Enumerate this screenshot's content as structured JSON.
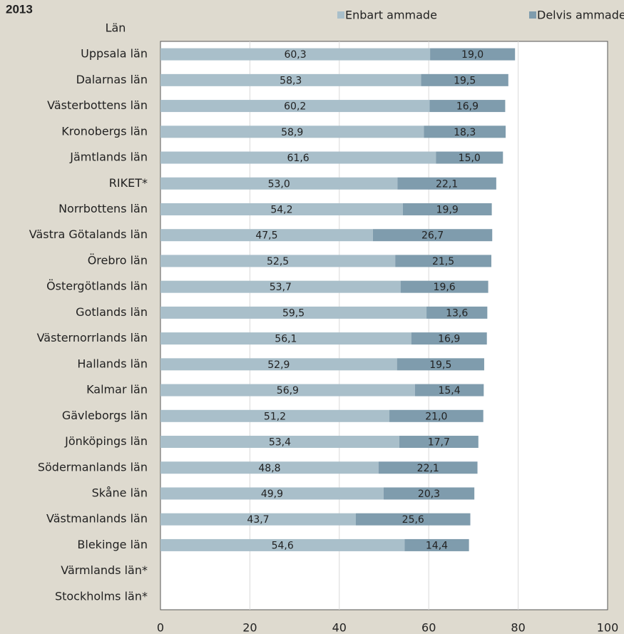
{
  "chart_data": {
    "type": "bar",
    "orientation": "horizontal",
    "stacked": true,
    "title": "2013",
    "y_label": "Län",
    "categories": [
      "Uppsala län",
      "Dalarnas län",
      "Västerbottens län",
      "Kronobergs län",
      "Jämtlands län",
      "RIKET*",
      "Norrbottens län",
      "Västra Götalands län",
      "Örebro län",
      "Östergötlands län",
      "Gotlands län",
      "Västernorrlands län",
      "Hallands län",
      "Kalmar län",
      "Gävleborgs län",
      "Jönköpings län",
      "Södermanlands län",
      "Skåne län",
      "Västmanlands län",
      "Blekinge län",
      "Värmlands län*",
      "Stockholms län*"
    ],
    "series": [
      {
        "name": "Enbart ammade",
        "color": "#a9bfca",
        "values": [
          60.3,
          58.3,
          60.2,
          58.9,
          61.6,
          53.0,
          54.2,
          47.5,
          52.5,
          53.7,
          59.5,
          56.1,
          52.9,
          56.9,
          51.2,
          53.4,
          48.8,
          49.9,
          43.7,
          54.6,
          null,
          null
        ],
        "value_labels": [
          "60,3",
          "58,3",
          "60,2",
          "58,9",
          "61,6",
          "53,0",
          "54,2",
          "47,5",
          "52,5",
          "53,7",
          "59,5",
          "56,1",
          "52,9",
          "56,9",
          "51,2",
          "53,4",
          "48,8",
          "49,9",
          "43,7",
          "54,6",
          null,
          null
        ]
      },
      {
        "name": "Delvis ammade",
        "color": "#7f9cad",
        "values": [
          19.0,
          19.5,
          16.9,
          18.3,
          15.0,
          22.1,
          19.9,
          26.7,
          21.5,
          19.6,
          13.6,
          16.9,
          19.5,
          15.4,
          21.0,
          17.7,
          22.1,
          20.3,
          25.6,
          14.4,
          null,
          null
        ],
        "value_labels": [
          "19,0",
          "19,5",
          "16,9",
          "18,3",
          "15,0",
          "22,1",
          "19,9",
          "26,7",
          "21,5",
          "19,6",
          "13,6",
          "16,9",
          "19,5",
          "15,4",
          "21,0",
          "17,7",
          "22,1",
          "20,3",
          "25,6",
          "14,4",
          null,
          null
        ]
      }
    ],
    "xlim": [
      0,
      100
    ],
    "xticks": [
      0,
      20,
      40,
      60,
      80,
      100
    ],
    "grid": true,
    "legend": "top"
  }
}
